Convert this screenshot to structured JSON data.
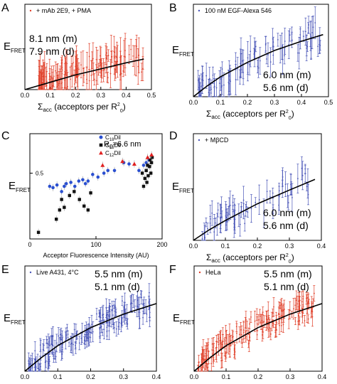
{
  "figure": {
    "description_panels": [
      "A",
      "B",
      "C",
      "D",
      "E",
      "F"
    ]
  },
  "chart_data": [
    {
      "panel": "A",
      "type": "scatter",
      "legend": "+ mAb 2E9, + PMA",
      "marker_color": "#e0402a",
      "annotation_lines": [
        "8.1 nm (m)",
        "7.9 nm (d)"
      ],
      "ylabel": "E",
      "ylabel_sub": "FRET",
      "xlabel": "Σ",
      "xlabel_sub": "acc",
      "xlabel_rest": " (acceptors per R",
      "xlabel_sup": "2",
      "xlabel_sub2": "0",
      "xlabel_end": ")",
      "xlim": [
        0,
        0.5
      ],
      "ylim": [
        0,
        0.7
      ],
      "xticks": [
        "0.0",
        "0.1",
        "0.2",
        "0.3",
        "0.4",
        "0.5"
      ],
      "fit": {
        "x": [
          0.0,
          0.1,
          0.2,
          0.3,
          0.4,
          0.47
        ],
        "y": [
          0.0,
          0.06,
          0.12,
          0.17,
          0.22,
          0.25
        ]
      },
      "points": {
        "n": 130,
        "x_range": [
          0.05,
          0.47
        ],
        "trend_slope": 0.55,
        "spread": 0.12,
        "err": 0.11,
        "seed": 11
      }
    },
    {
      "panel": "B",
      "type": "scatter",
      "legend": "100 nM EGF-Alexa 546",
      "marker_color": "#4a56b8",
      "annotation_lines": [
        "6.0 nm (m)",
        "5.6 nm (d)"
      ],
      "ylabel": "E",
      "ylabel_sub": "FRET",
      "xlabel": "Σ",
      "xlabel_sub": "acc",
      "xlabel_rest": " (acceptors per R",
      "xlabel_sup": "2",
      "xlabel_sub2": "0",
      "xlabel_end": ")",
      "xlim": [
        0,
        0.5
      ],
      "ylim": [
        0,
        0.7
      ],
      "xticks": [
        "0.0",
        "0.1",
        "0.2",
        "0.3",
        "0.4",
        "0.5"
      ],
      "fit": {
        "x": [
          0.0,
          0.05,
          0.1,
          0.2,
          0.3,
          0.4,
          0.48
        ],
        "y": [
          0.0,
          0.08,
          0.15,
          0.26,
          0.35,
          0.42,
          0.47
        ]
      },
      "points": {
        "n": 95,
        "x_range": [
          0.01,
          0.47
        ],
        "trend_slope": 1.0,
        "spread": 0.1,
        "err": 0.09,
        "seed": 23
      }
    },
    {
      "panel": "C",
      "type": "scatter",
      "annotation": "R",
      "annotation_sub": "0",
      "annotation_rest": "=6.6 nm",
      "ylabel": "E",
      "ylabel_sub": "FRET",
      "xlabel": "Acceptor Fluorescence Intensity (AU)",
      "xlim": [
        0,
        200
      ],
      "ylim": [
        0,
        0.8
      ],
      "xticks": [
        "0",
        "100",
        "200"
      ],
      "yticks": [
        "0.5"
      ],
      "series": [
        {
          "name": "C",
          "name_sub": "18",
          "name_rest": "Dil",
          "color": "#2a4fd0",
          "marker": "circle",
          "x": [
            30,
            35,
            41,
            48,
            52,
            55,
            62,
            68,
            74,
            80,
            84,
            88,
            95,
            103,
            112,
            118,
            128,
            142,
            150,
            165,
            172,
            176,
            180
          ],
          "y": [
            0.4,
            0.39,
            0.41,
            0.36,
            0.4,
            0.42,
            0.43,
            0.4,
            0.44,
            0.45,
            0.42,
            0.44,
            0.49,
            0.47,
            0.5,
            0.52,
            0.52,
            0.58,
            0.57,
            0.52,
            0.56,
            0.58,
            0.6
          ]
        },
        {
          "name": "C",
          "name_sub": "16",
          "name_rest": "Dil",
          "color": "#111111",
          "marker": "square",
          "x": [
            13,
            40,
            45,
            48,
            52,
            60,
            67,
            75,
            82,
            88,
            92,
            170,
            172,
            174,
            176,
            177,
            178,
            179,
            181,
            182,
            183,
            184,
            185
          ],
          "y": [
            0.05,
            0.15,
            0.22,
            0.3,
            0.24,
            0.33,
            0.36,
            0.3,
            0.25,
            0.22,
            0.35,
            0.5,
            0.4,
            0.46,
            0.52,
            0.43,
            0.56,
            0.48,
            0.55,
            0.6,
            0.5,
            0.58,
            0.62
          ]
        },
        {
          "name": "C",
          "name_sub": "12",
          "name_rest": "Dil",
          "color": "#e02020",
          "marker": "triangle",
          "x": [
            110,
            140,
            158,
            178,
            184
          ],
          "y": [
            0.56,
            0.59,
            0.57,
            0.62,
            0.64
          ]
        }
      ]
    },
    {
      "panel": "D",
      "type": "scatter",
      "legend": "+ MβCD",
      "marker_color": "#4a56b8",
      "annotation_lines": [
        "6.0 nm (m)",
        "5.6 nm (d)"
      ],
      "ylabel": "E",
      "ylabel_sub": "FRET",
      "xlabel": "Σ",
      "xlabel_sub": "acc",
      "xlabel_rest": " (acceptors per R",
      "xlabel_sup": "2",
      "xlabel_sub2": "0",
      "xlabel_end": ")",
      "xlim": [
        0,
        0.4
      ],
      "ylim": [
        0,
        0.7
      ],
      "xticks": [
        "0.0",
        "0.1",
        "0.2",
        "0.3",
        "0.4"
      ],
      "fit": {
        "x": [
          0.0,
          0.05,
          0.1,
          0.2,
          0.3,
          0.38
        ],
        "y": [
          0.0,
          0.07,
          0.13,
          0.24,
          0.33,
          0.4
        ]
      },
      "points": {
        "n": 75,
        "x_range": [
          0.02,
          0.36
        ],
        "trend_slope": 1.1,
        "spread": 0.1,
        "err": 0.07,
        "seed": 37
      }
    },
    {
      "panel": "E",
      "type": "scatter",
      "legend": "Live A431, 4°C",
      "marker_color": "#4a56b8",
      "annotation_lines": [
        "5.5 nm (m)",
        "5.1 nm (d)"
      ],
      "ylabel": "E",
      "ylabel_sub": "FRET",
      "xlabel": "Σ",
      "xlabel_sub": "acc",
      "xlabel_rest": " (acceptors per R",
      "xlabel_sup": "2",
      "xlabel_sub2": "0",
      "xlabel_end": ")",
      "xlim": [
        0,
        0.4
      ],
      "ylim": [
        0,
        0.7
      ],
      "xticks": [
        "0.0",
        "0.1",
        "0.2",
        "0.3",
        "0.4"
      ],
      "fit": {
        "x": [
          0.0,
          0.05,
          0.1,
          0.2,
          0.3,
          0.4
        ],
        "y": [
          0.0,
          0.09,
          0.17,
          0.29,
          0.38,
          0.45
        ]
      },
      "points": {
        "n": 170,
        "x_range": [
          0.01,
          0.38
        ],
        "trend_slope": 1.2,
        "spread": 0.09,
        "err": 0.05,
        "seed": 53
      }
    },
    {
      "panel": "F",
      "type": "scatter",
      "legend": "HeLa",
      "marker_color": "#e0402a",
      "annotation_lines": [
        "5.5 nm (m)",
        "5.1 nm (d)"
      ],
      "ylabel": "E",
      "ylabel_sub": "FRET",
      "xlabel": "Σ",
      "xlabel_sub": "acc",
      "xlabel_rest": " (acceptors per R",
      "xlabel_sup": "2",
      "xlabel_sub2": "0",
      "xlabel_end": ")",
      "xlim": [
        0,
        0.4
      ],
      "ylim": [
        0,
        0.7
      ],
      "xticks": [
        "0.0",
        "0.1",
        "0.2",
        "0.3",
        "0.4"
      ],
      "fit": {
        "x": [
          0.0,
          0.05,
          0.1,
          0.2,
          0.3,
          0.4
        ],
        "y": [
          0.0,
          0.09,
          0.17,
          0.29,
          0.38,
          0.45
        ]
      },
      "points": {
        "n": 170,
        "x_range": [
          0.01,
          0.38
        ],
        "trend_slope": 1.2,
        "spread": 0.09,
        "err": 0.05,
        "seed": 71
      }
    }
  ]
}
